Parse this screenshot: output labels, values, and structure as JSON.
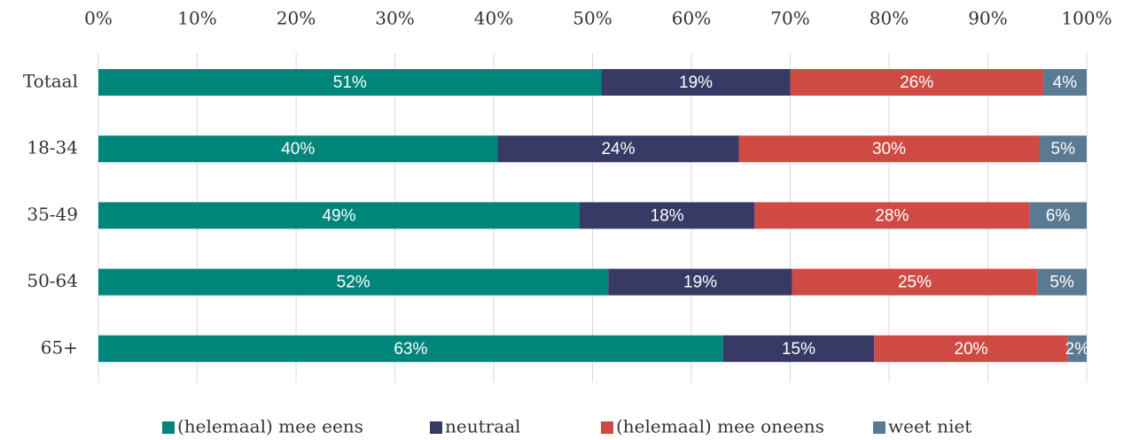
{
  "chart_data": {
    "type": "stacked-bar-horizontal",
    "categories": [
      "Totaal",
      "18-34",
      "35-49",
      "50-64",
      "65+"
    ],
    "series": [
      {
        "name": "(helemaal) mee eens",
        "color": "#00857a",
        "values": [
          50.9,
          40.4,
          48.7,
          51.6,
          63.2
        ],
        "value_labels": [
          "51%",
          "40%",
          "49%",
          "52%",
          "63%"
        ]
      },
      {
        "name": "neutraal",
        "color": "#363a64",
        "values": [
          19.1,
          24.4,
          17.7,
          18.6,
          15.3
        ],
        "value_labels": [
          "19%",
          "24%",
          "18%",
          "19%",
          "15%"
        ]
      },
      {
        "name": "(helemaal) mee oneens",
        "color": "#cf4a43",
        "values": [
          25.6,
          30.4,
          27.8,
          24.8,
          19.6
        ],
        "value_labels": [
          "26%",
          "30%",
          "28%",
          "25%",
          "20%"
        ]
      },
      {
        "name": "weet niet",
        "color": "#5a7a94",
        "values": [
          4.4,
          4.8,
          5.8,
          5.0,
          1.9
        ],
        "value_labels": [
          "4%",
          "5%",
          "6%",
          "5%",
          "2%"
        ]
      }
    ],
    "xlim": [
      0,
      100
    ],
    "xticks": [
      {
        "value": 0,
        "label": "0%"
      },
      {
        "value": 10,
        "label": "10%"
      },
      {
        "value": 20,
        "label": "20%"
      },
      {
        "value": 30,
        "label": "30%"
      },
      {
        "value": 40,
        "label": "40%"
      },
      {
        "value": 50,
        "label": "50%"
      },
      {
        "value": 60,
        "label": "60%"
      },
      {
        "value": 70,
        "label": "70%"
      },
      {
        "value": 80,
        "label": "80%"
      },
      {
        "value": 90,
        "label": "90%"
      },
      {
        "value": 100,
        "label": "100%"
      }
    ],
    "grid": true,
    "legend": "bottom"
  }
}
